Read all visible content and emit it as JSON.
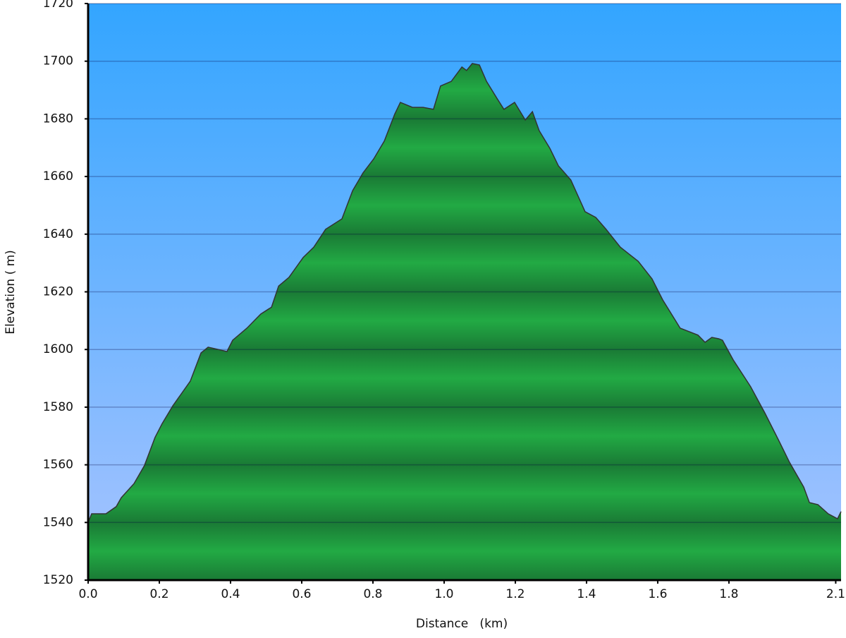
{
  "chart_data": {
    "type": "area",
    "xlabel": "Distance   (km)",
    "ylabel": "Elevation ( m)",
    "color": "#22aa44",
    "line_color": "#333333",
    "x": [
      0.0,
      0.01,
      0.05,
      0.079,
      0.093,
      0.129,
      0.158,
      0.188,
      0.208,
      0.238,
      0.287,
      0.317,
      0.337,
      0.366,
      0.39,
      0.406,
      0.446,
      0.485,
      0.515,
      0.535,
      0.564,
      0.604,
      0.634,
      0.667,
      0.713,
      0.743,
      0.772,
      0.802,
      0.832,
      0.861,
      0.877,
      0.911,
      0.941,
      0.97,
      0.99,
      1.02,
      1.05,
      1.063,
      1.079,
      1.099,
      1.119,
      1.149,
      1.168,
      1.198,
      1.228,
      1.248,
      1.267,
      1.297,
      1.321,
      1.356,
      1.396,
      1.426,
      1.455,
      1.495,
      1.545,
      1.584,
      1.614,
      1.663,
      1.713,
      1.733,
      1.752,
      1.772,
      1.782,
      1.812,
      1.861,
      1.901,
      1.941,
      1.97,
      2.01,
      2.026,
      2.05,
      2.079,
      2.105,
      2.115
    ],
    "values": [
      1540.0,
      1543.0,
      1543.0,
      1545.5,
      1548.6,
      1553.5,
      1559.7,
      1569.5,
      1574.3,
      1580.5,
      1589.0,
      1598.8,
      1600.8,
      1600.0,
      1599.3,
      1603.2,
      1607.4,
      1612.3,
      1614.7,
      1622.0,
      1625.0,
      1631.9,
      1635.5,
      1641.7,
      1645.3,
      1655.1,
      1661.2,
      1666.1,
      1672.3,
      1681.6,
      1685.7,
      1684.0,
      1684.0,
      1683.3,
      1691.4,
      1693.0,
      1698.0,
      1696.8,
      1699.2,
      1698.7,
      1693.0,
      1687.0,
      1683.3,
      1685.7,
      1679.6,
      1682.5,
      1675.9,
      1669.8,
      1663.7,
      1658.8,
      1647.8,
      1645.8,
      1641.7,
      1635.5,
      1630.6,
      1624.5,
      1617.2,
      1607.4,
      1605.0,
      1602.5,
      1604.2,
      1603.7,
      1603.2,
      1596.4,
      1587.1,
      1578.0,
      1568.2,
      1560.9,
      1552.3,
      1546.9,
      1546.2,
      1543.0,
      1541.3,
      1543.8
    ],
    "xlim": [
      0,
      2.115
    ],
    "ylim": [
      1520,
      1720
    ],
    "xticks": [
      {
        "value": 0,
        "label": "0.0"
      },
      0.2,
      0.4,
      0.6,
      0.8,
      {
        "value": 1,
        "label": "1.0"
      },
      1.2,
      1.4,
      1.6,
      1.8,
      2.1
    ],
    "yticks": [
      1520,
      1540,
      1560,
      1580,
      1600,
      1620,
      1640,
      1660,
      1680,
      1700,
      1720
    ],
    "grid": true
  }
}
